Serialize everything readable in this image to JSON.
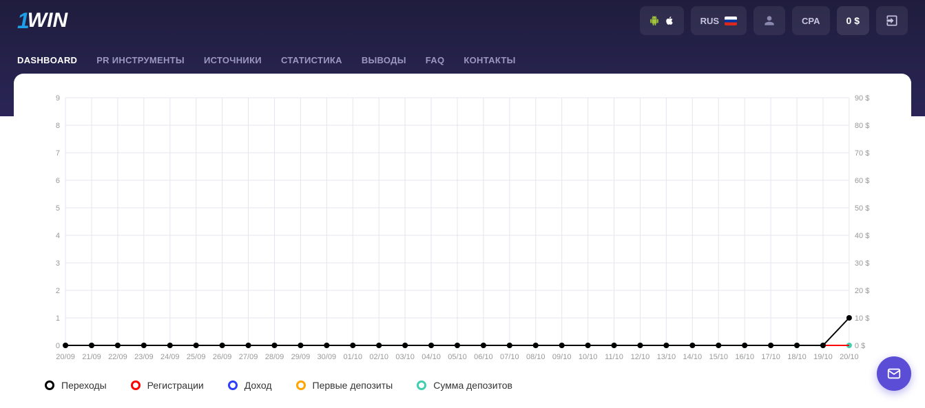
{
  "logo": {
    "prefix": "1",
    "text": "WIN"
  },
  "topbar": {
    "lang": "RUS",
    "cpa": "CPA",
    "balance": "0 $"
  },
  "nav": [
    {
      "label": "DASHBOARD",
      "active": true
    },
    {
      "label": "PR ИНСТРУМЕНТЫ",
      "active": false
    },
    {
      "label": "ИСТОЧНИКИ",
      "active": false
    },
    {
      "label": "СТАТИСТИКА",
      "active": false
    },
    {
      "label": "ВЫВОДЫ",
      "active": false
    },
    {
      "label": "FAQ",
      "active": false
    },
    {
      "label": "КОНТАКТЫ",
      "active": false
    }
  ],
  "chart": {
    "type": "line",
    "background": "#ffffff",
    "grid_color": "#e5e5ef",
    "axis_label_color": "#999999",
    "axis_fontsize": 11,
    "y_left": {
      "min": 0,
      "max": 9,
      "step": 1,
      "ticks": [
        0,
        1,
        2,
        3,
        4,
        5,
        6,
        7,
        8,
        9
      ]
    },
    "y_right": {
      "min": 0,
      "max": 90,
      "step": 10,
      "suffix": " $",
      "ticks": [
        "0 $",
        "10 $",
        "20 $",
        "30 $",
        "40 $",
        "50 $",
        "60 $",
        "70 $",
        "80 $",
        "90 $"
      ]
    },
    "x_labels": [
      "20/09",
      "21/09",
      "22/09",
      "23/09",
      "24/09",
      "25/09",
      "26/09",
      "27/09",
      "28/09",
      "29/09",
      "30/09",
      "01/10",
      "02/10",
      "03/10",
      "04/10",
      "05/10",
      "06/10",
      "07/10",
      "08/10",
      "09/10",
      "10/10",
      "11/10",
      "12/10",
      "13/10",
      "14/10",
      "15/10",
      "16/10",
      "17/10",
      "18/10",
      "19/10",
      "20/10"
    ],
    "series": [
      {
        "key": "clicks",
        "label": "Переходы",
        "color": "#000000",
        "values": [
          0,
          0,
          0,
          0,
          0,
          0,
          0,
          0,
          0,
          0,
          0,
          0,
          0,
          0,
          0,
          0,
          0,
          0,
          0,
          0,
          0,
          0,
          0,
          0,
          0,
          0,
          0,
          0,
          0,
          0,
          1
        ],
        "marker": true,
        "y_axis": "left"
      },
      {
        "key": "reg",
        "label": "Регистрации",
        "color": "#ff0000",
        "values": [
          0,
          0,
          0,
          0,
          0,
          0,
          0,
          0,
          0,
          0,
          0,
          0,
          0,
          0,
          0,
          0,
          0,
          0,
          0,
          0,
          0,
          0,
          0,
          0,
          0,
          0,
          0,
          0,
          0,
          0,
          0
        ],
        "marker": false,
        "y_axis": "left"
      },
      {
        "key": "income",
        "label": "Доход",
        "color": "#2b3fff",
        "values": [
          0,
          0,
          0,
          0,
          0,
          0,
          0,
          0,
          0,
          0,
          0,
          0,
          0,
          0,
          0,
          0,
          0,
          0,
          0,
          0,
          0,
          0,
          0,
          0,
          0,
          0,
          0,
          0,
          0,
          0,
          0
        ],
        "marker": false,
        "y_axis": "right"
      },
      {
        "key": "first_dep",
        "label": "Первые депозиты",
        "color": "#ffa500",
        "values": [
          0,
          0,
          0,
          0,
          0,
          0,
          0,
          0,
          0,
          0,
          0,
          0,
          0,
          0,
          0,
          0,
          0,
          0,
          0,
          0,
          0,
          0,
          0,
          0,
          0,
          0,
          0,
          0,
          0,
          0,
          0
        ],
        "marker": false,
        "y_axis": "left"
      },
      {
        "key": "dep_sum",
        "label": "Сумма депозитов",
        "color": "#3ecfb0",
        "values": [
          0,
          0,
          0,
          0,
          0,
          0,
          0,
          0,
          0,
          0,
          0,
          0,
          0,
          0,
          0,
          0,
          0,
          0,
          0,
          0,
          0,
          0,
          0,
          0,
          0,
          0,
          0,
          0,
          0,
          0,
          0
        ],
        "marker": true,
        "y_axis": "right"
      }
    ],
    "line_width": 2,
    "dot_radius": 4
  },
  "colors": {
    "header_bg_top": "#1f1d3d",
    "header_bg_bottom": "#2a2556",
    "fab_bg": "#5b4dd6"
  }
}
